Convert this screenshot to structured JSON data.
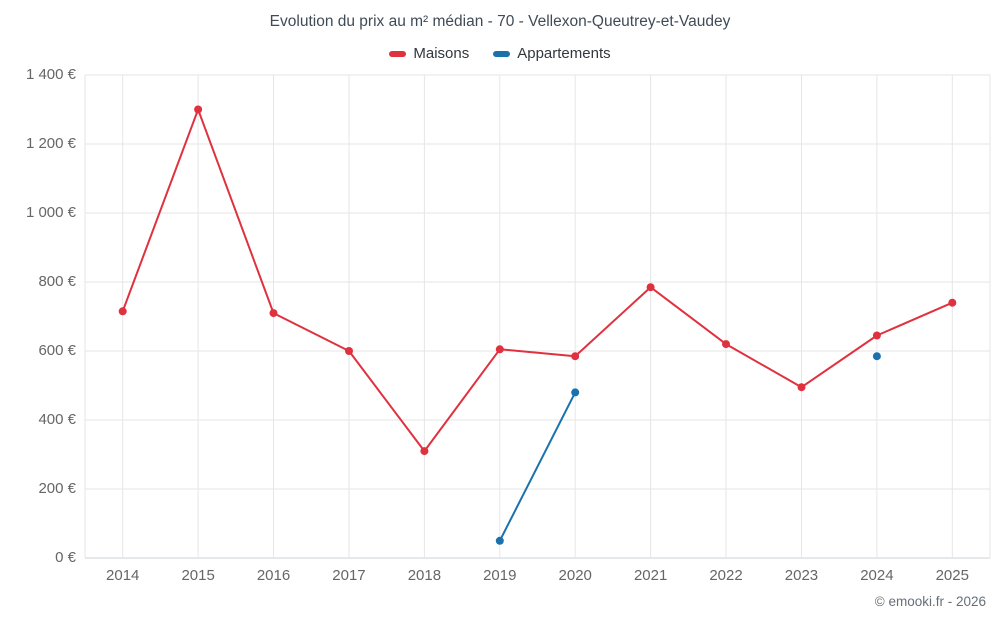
{
  "credit": "© emooki.fr - 2026",
  "chart_data": {
    "type": "line",
    "title": "Evolution du prix au m² médian - 70 - Vellexon-Queutrey-et-Vaudey",
    "categories": [
      "2014",
      "2015",
      "2016",
      "2017",
      "2018",
      "2019",
      "2020",
      "2021",
      "2022",
      "2023",
      "2024",
      "2025"
    ],
    "series": [
      {
        "name": "Maisons",
        "color": "#e0313f",
        "values": [
          715,
          1300,
          710,
          600,
          310,
          605,
          585,
          785,
          620,
          495,
          645,
          740
        ]
      },
      {
        "name": "Appartements",
        "color": "#1a71ad",
        "values": [
          null,
          null,
          null,
          null,
          null,
          50,
          480,
          null,
          null,
          null,
          585,
          null
        ]
      }
    ],
    "ylim": [
      0,
      1400
    ],
    "ytick_step": 200,
    "ytick_labels": [
      "0 €",
      "200 €",
      "400 €",
      "600 €",
      "800 €",
      "1 000 €",
      "1 200 €",
      "1 400 €"
    ],
    "grid": true,
    "legend_position": "top",
    "currency": "€"
  }
}
